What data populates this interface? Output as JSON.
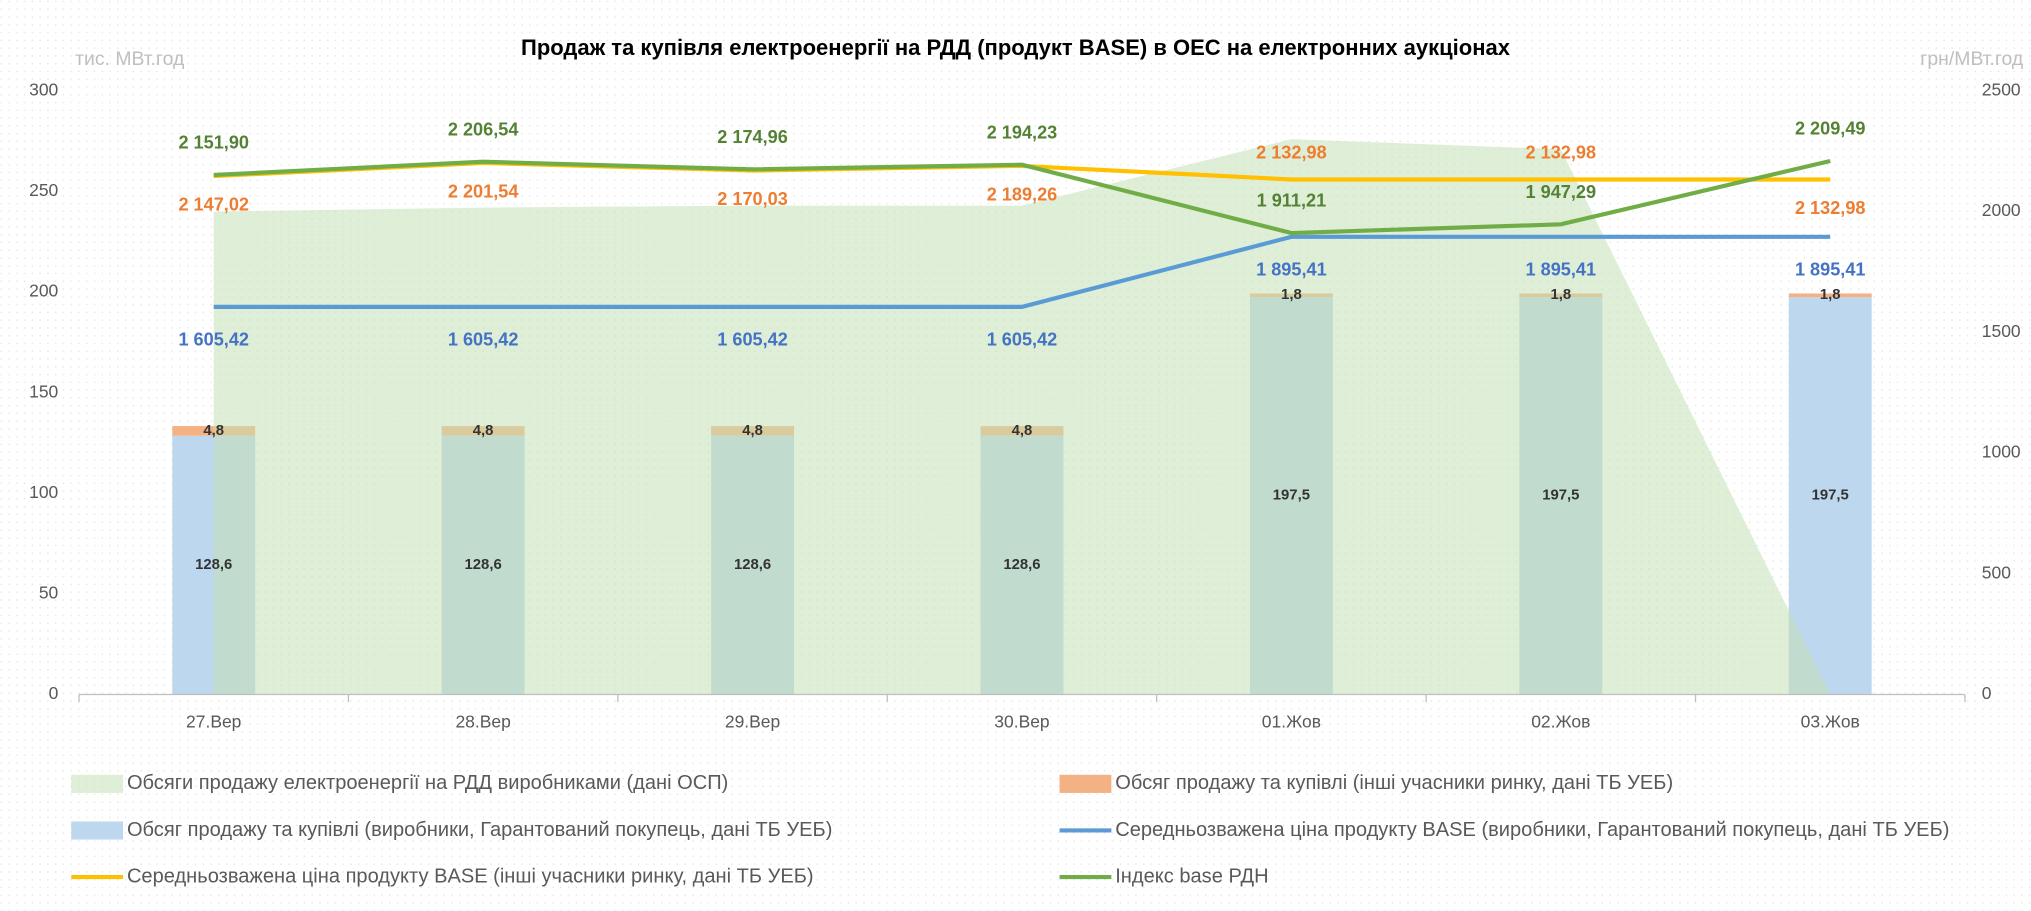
{
  "chart_data": {
    "type": "combo",
    "title": "Продаж та купівля електроенергії на РДД (продукт BASE) в ОЕС на електронних аукціонах",
    "y_label": "тис. МВт.год",
    "y2_label": "грн/МВт.год",
    "categories": [
      "27.Вер",
      "28.Вер",
      "29.Вер",
      "30.Вер",
      "01.Жов",
      "02.Жов",
      "03.Жов"
    ],
    "ylim": [
      0,
      300
    ],
    "yticks": [
      0,
      50,
      100,
      150,
      200,
      250,
      300
    ],
    "y2lim": [
      0,
      2500
    ],
    "y2ticks": [
      0,
      500,
      1000,
      1500,
      2000,
      2500
    ],
    "grid": false,
    "series": [
      {
        "name": "Обсяги продажу електроенергії на РДД виробниками (дані ОСП)",
        "type": "area",
        "color": "#c5e0b4",
        "values": [
          240,
          242,
          243,
          243,
          276,
          271,
          0
        ]
      },
      {
        "name": "Обсяг продажу та купівлі (інші учасники ринку, дані ТБ УЕБ)",
        "type": "bar",
        "color": "#f4b183",
        "values": [
          4.8,
          4.8,
          4.8,
          4.8,
          1.8,
          1.8,
          1.8
        ],
        "value_labels": [
          "4,8",
          "4,8",
          "4,8",
          "4,8",
          "1,8",
          "1,8",
          "1,8"
        ]
      },
      {
        "name": "Обсяг продажу та купівлі (виробники, Гарантований покупець, дані ТБ УЕБ)",
        "type": "bar",
        "color": "#bdd7ee",
        "values": [
          128.6,
          128.6,
          128.6,
          128.6,
          197.5,
          197.5,
          197.5
        ],
        "value_labels": [
          "128,6",
          "128,6",
          "128,6",
          "128,6",
          "197,5",
          "197,5",
          "197,5"
        ]
      },
      {
        "name": "Середньозважена ціна продукту BASE (виробники, Гарантований покупець, дані ТБ УЕБ)",
        "type": "line",
        "axis": "y2",
        "color": "#5b9bd5",
        "label_color": "#4472c4",
        "values": [
          1605.42,
          1605.42,
          1605.42,
          1605.42,
          1895.41,
          1895.41,
          1895.41
        ],
        "value_labels": [
          "1 605,42",
          "1 605,42",
          "1 605,42",
          "1 605,42",
          "1 895,41",
          "1 895,41",
          "1 895,41"
        ]
      },
      {
        "name": "Середньозважена ціна продукту BASE (інші учасники ринку,  дані ТБ УЕБ)",
        "type": "line",
        "axis": "y2",
        "color": "#ffc000",
        "label_color": "#ed7d31",
        "values": [
          2147.02,
          2201.54,
          2170.03,
          2189.26,
          2132.98,
          2132.98,
          2132.98
        ],
        "value_labels": [
          "2 147,02",
          "2 201,54",
          "2 170,03",
          "2 189,26",
          "2 132,98",
          "2 132,98",
          "2 132,98"
        ]
      },
      {
        "name": "Індекс base РДН",
        "type": "line",
        "axis": "y2",
        "color": "#70ad47",
        "label_color": "#548235",
        "values": [
          2151.9,
          2206.54,
          2174.96,
          2194.23,
          1911.21,
          1947.29,
          2209.49
        ],
        "value_labels": [
          "2 151,90",
          "2 206,54",
          "2 174,96",
          "2 194,23",
          "1 911,21",
          "1 947,29",
          "2 209,49"
        ]
      }
    ]
  }
}
